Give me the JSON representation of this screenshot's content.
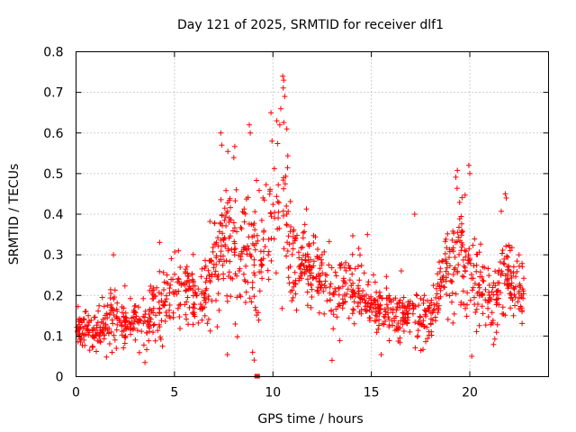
{
  "chart_data": {
    "type": "scatter",
    "title": "Day 121 of 2025, SRMTID for receiver dlf1",
    "xlabel": "GPS time / hours",
    "ylabel": "SRMTID / TECUs",
    "xlim": [
      0,
      24
    ],
    "ylim": [
      0,
      0.8
    ],
    "x_ticks": [
      0,
      5,
      10,
      15,
      20
    ],
    "x_tick_labels": [
      "0",
      "5",
      "10",
      "15",
      "20"
    ],
    "y_ticks": [
      0,
      0.1,
      0.2,
      0.3,
      0.4,
      0.5,
      0.6,
      0.7,
      0.8
    ],
    "y_tick_labels": [
      "0",
      "0.1",
      "0.2",
      "0.3",
      "0.4",
      "0.5",
      "0.6",
      "0.7",
      "0.8"
    ],
    "grid": true,
    "marker": "plus",
    "series_color": "#ff0000",
    "envelope": [
      {
        "x": 0.0,
        "mean": 0.12,
        "spread": 0.05
      },
      {
        "x": 1.0,
        "mean": 0.11,
        "spread": 0.04
      },
      {
        "x": 1.8,
        "mean": 0.14,
        "spread": 0.07
      },
      {
        "x": 2.5,
        "mean": 0.12,
        "spread": 0.05
      },
      {
        "x": 3.5,
        "mean": 0.14,
        "spread": 0.06
      },
      {
        "x": 4.5,
        "mean": 0.18,
        "spread": 0.07
      },
      {
        "x": 5.5,
        "mean": 0.21,
        "spread": 0.07
      },
      {
        "x": 6.5,
        "mean": 0.19,
        "spread": 0.08
      },
      {
        "x": 7.0,
        "mean": 0.26,
        "spread": 0.12
      },
      {
        "x": 7.8,
        "mean": 0.33,
        "spread": 0.13
      },
      {
        "x": 8.5,
        "mean": 0.3,
        "spread": 0.13
      },
      {
        "x": 9.2,
        "mean": 0.26,
        "spread": 0.12
      },
      {
        "x": 9.8,
        "mean": 0.36,
        "spread": 0.16
      },
      {
        "x": 10.5,
        "mean": 0.45,
        "spread": 0.18
      },
      {
        "x": 11.0,
        "mean": 0.3,
        "spread": 0.1
      },
      {
        "x": 12.0,
        "mean": 0.26,
        "spread": 0.08
      },
      {
        "x": 13.0,
        "mean": 0.2,
        "spread": 0.08
      },
      {
        "x": 14.0,
        "mean": 0.22,
        "spread": 0.07
      },
      {
        "x": 15.0,
        "mean": 0.17,
        "spread": 0.05
      },
      {
        "x": 16.0,
        "mean": 0.16,
        "spread": 0.05
      },
      {
        "x": 17.0,
        "mean": 0.15,
        "spread": 0.06
      },
      {
        "x": 18.0,
        "mean": 0.14,
        "spread": 0.05
      },
      {
        "x": 18.8,
        "mean": 0.25,
        "spread": 0.09
      },
      {
        "x": 19.5,
        "mean": 0.3,
        "spread": 0.12
      },
      {
        "x": 20.2,
        "mean": 0.24,
        "spread": 0.1
      },
      {
        "x": 21.0,
        "mean": 0.16,
        "spread": 0.07
      },
      {
        "x": 21.8,
        "mean": 0.25,
        "spread": 0.09
      },
      {
        "x": 22.6,
        "mean": 0.2,
        "spread": 0.06
      }
    ],
    "x_range_observed": [
      0.0,
      22.75
    ],
    "spikes": [
      {
        "x": 7.35,
        "y": 0.6
      },
      {
        "x": 8.8,
        "y": 0.62
      },
      {
        "x": 8.85,
        "y": 0.6
      },
      {
        "x": 9.9,
        "y": 0.65
      },
      {
        "x": 10.2,
        "y": 0.63
      },
      {
        "x": 10.5,
        "y": 0.74
      },
      {
        "x": 10.55,
        "y": 0.73
      },
      {
        "x": 10.6,
        "y": 0.69
      },
      {
        "x": 10.4,
        "y": 0.66
      },
      {
        "x": 10.35,
        "y": 0.62
      },
      {
        "x": 9.95,
        "y": 0.58
      },
      {
        "x": 7.4,
        "y": 0.57
      },
      {
        "x": 19.95,
        "y": 0.52
      },
      {
        "x": 20.0,
        "y": 0.5
      },
      {
        "x": 21.8,
        "y": 0.45
      },
      {
        "x": 21.85,
        "y": 0.44
      },
      {
        "x": 17.2,
        "y": 0.4
      },
      {
        "x": 14.8,
        "y": 0.35
      },
      {
        "x": 1.9,
        "y": 0.3
      },
      {
        "x": 5.2,
        "y": 0.31
      },
      {
        "x": 3.5,
        "y": 0.035
      },
      {
        "x": 20.1,
        "y": 0.05
      },
      {
        "x": 13.0,
        "y": 0.04
      },
      {
        "x": 9.2,
        "y": 0.0
      }
    ],
    "approx_point_count": 1400
  }
}
